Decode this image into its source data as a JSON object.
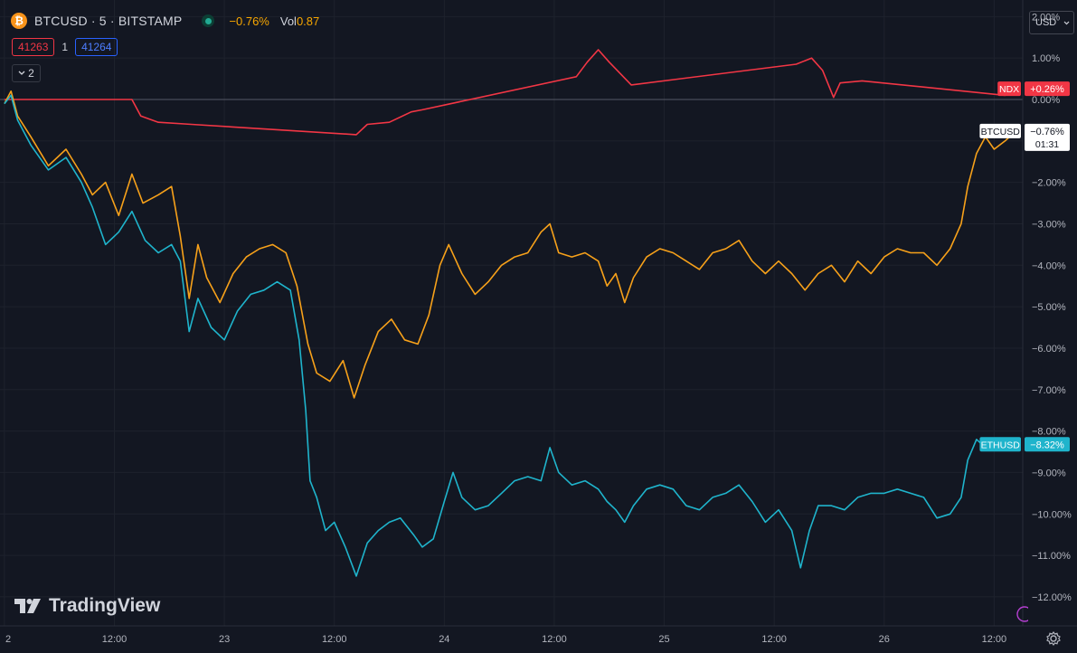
{
  "header": {
    "symbol": "BTCUSD · 5 · BITSTAMP",
    "btc_glyph": "₿",
    "change": "−0.76%",
    "vol_label": "Vol",
    "vol_value": "0.87"
  },
  "order": {
    "sell_price": "41263",
    "quantity": "1",
    "buy_price": "41264"
  },
  "indicators_toggle": {
    "count": "2"
  },
  "currency_selector": {
    "value": "USD"
  },
  "branding": {
    "logo_text": "TradingView"
  },
  "colors": {
    "background": "#131722",
    "btc": "#f7a11a",
    "eth": "#1fb4cc",
    "ndx": "#f23645",
    "grid": "#1e222d",
    "axis_text": "#b2b5be"
  },
  "chart_data": {
    "type": "line",
    "percent_scale": true,
    "ylim": [
      -12.7,
      2.4
    ],
    "y_ticks": [
      "2.00%",
      "1.00%",
      "0.00%",
      "−1.00%",
      "−2.00%",
      "−3.00%",
      "−4.00%",
      "−5.00%",
      "−6.00%",
      "−7.00%",
      "−8.00%",
      "−9.00%",
      "−10.00%",
      "−11.00%",
      "−12.00%"
    ],
    "y_tick_values": [
      2,
      1,
      0,
      -1,
      -2,
      -3,
      -4,
      -5,
      -6,
      -7,
      -8,
      -9,
      -10,
      -11,
      -12
    ],
    "x_ticks": [
      "2",
      "12:00",
      "23",
      "12:00",
      "24",
      "12:00",
      "25",
      "12:00",
      "26",
      "12:00"
    ],
    "x_tick_values": [
      0,
      0.5,
      1,
      1.5,
      2,
      2.5,
      3,
      3.5,
      4,
      4.5
    ],
    "xlim": [
      -0.02,
      4.63
    ],
    "grid": true,
    "series": [
      {
        "name": "NDX",
        "color": "#f23645",
        "last_label": "+0.26%",
        "points": [
          [
            0,
            0
          ],
          [
            0.58,
            0
          ],
          [
            0.62,
            -0.4
          ],
          [
            0.7,
            -0.55
          ],
          [
            0.85,
            -0.6
          ],
          [
            1.6,
            -0.85
          ],
          [
            1.65,
            -0.6
          ],
          [
            1.75,
            -0.55
          ],
          [
            1.85,
            -0.3
          ],
          [
            1.9,
            -0.25
          ],
          [
            2.6,
            0.55
          ],
          [
            2.65,
            0.9
          ],
          [
            2.7,
            1.2
          ],
          [
            2.75,
            0.9
          ],
          [
            2.85,
            0.35
          ],
          [
            3.6,
            0.85
          ],
          [
            3.67,
            1.0
          ],
          [
            3.72,
            0.7
          ],
          [
            3.77,
            0.05
          ],
          [
            3.8,
            0.4
          ],
          [
            3.9,
            0.45
          ],
          [
            4.55,
            0.1
          ],
          [
            4.62,
            0.26
          ]
        ]
      },
      {
        "name": "BTCUSD",
        "color": "#f7a11a",
        "last_label": "−0.76%",
        "countdown": "01:31",
        "points": [
          [
            0,
            -0.1
          ],
          [
            0.03,
            0.2
          ],
          [
            0.06,
            -0.4
          ],
          [
            0.12,
            -0.9
          ],
          [
            0.2,
            -1.6
          ],
          [
            0.28,
            -1.2
          ],
          [
            0.35,
            -1.8
          ],
          [
            0.4,
            -2.3
          ],
          [
            0.46,
            -2.0
          ],
          [
            0.52,
            -2.8
          ],
          [
            0.58,
            -1.8
          ],
          [
            0.63,
            -2.5
          ],
          [
            0.7,
            -2.3
          ],
          [
            0.76,
            -2.1
          ],
          [
            0.8,
            -3.3
          ],
          [
            0.84,
            -4.8
          ],
          [
            0.88,
            -3.5
          ],
          [
            0.92,
            -4.3
          ],
          [
            0.98,
            -4.9
          ],
          [
            1.04,
            -4.2
          ],
          [
            1.1,
            -3.8
          ],
          [
            1.16,
            -3.6
          ],
          [
            1.22,
            -3.5
          ],
          [
            1.28,
            -3.7
          ],
          [
            1.33,
            -4.5
          ],
          [
            1.38,
            -5.9
          ],
          [
            1.42,
            -6.6
          ],
          [
            1.48,
            -6.8
          ],
          [
            1.54,
            -6.3
          ],
          [
            1.59,
            -7.2
          ],
          [
            1.64,
            -6.4
          ],
          [
            1.7,
            -5.6
          ],
          [
            1.76,
            -5.3
          ],
          [
            1.82,
            -5.8
          ],
          [
            1.88,
            -5.9
          ],
          [
            1.93,
            -5.2
          ],
          [
            1.98,
            -4.0
          ],
          [
            2.02,
            -3.5
          ],
          [
            2.08,
            -4.2
          ],
          [
            2.14,
            -4.7
          ],
          [
            2.2,
            -4.4
          ],
          [
            2.26,
            -4.0
          ],
          [
            2.32,
            -3.8
          ],
          [
            2.38,
            -3.7
          ],
          [
            2.44,
            -3.2
          ],
          [
            2.48,
            -3.0
          ],
          [
            2.52,
            -3.7
          ],
          [
            2.58,
            -3.8
          ],
          [
            2.64,
            -3.7
          ],
          [
            2.7,
            -3.9
          ],
          [
            2.74,
            -4.5
          ],
          [
            2.78,
            -4.2
          ],
          [
            2.82,
            -4.9
          ],
          [
            2.86,
            -4.3
          ],
          [
            2.92,
            -3.8
          ],
          [
            2.98,
            -3.6
          ],
          [
            3.04,
            -3.7
          ],
          [
            3.1,
            -3.9
          ],
          [
            3.16,
            -4.1
          ],
          [
            3.22,
            -3.7
          ],
          [
            3.28,
            -3.6
          ],
          [
            3.34,
            -3.4
          ],
          [
            3.4,
            -3.9
          ],
          [
            3.46,
            -4.2
          ],
          [
            3.52,
            -3.9
          ],
          [
            3.58,
            -4.2
          ],
          [
            3.64,
            -4.6
          ],
          [
            3.7,
            -4.2
          ],
          [
            3.76,
            -4.0
          ],
          [
            3.82,
            -4.4
          ],
          [
            3.88,
            -3.9
          ],
          [
            3.94,
            -4.2
          ],
          [
            4.0,
            -3.8
          ],
          [
            4.06,
            -3.6
          ],
          [
            4.12,
            -3.7
          ],
          [
            4.18,
            -3.7
          ],
          [
            4.24,
            -4.0
          ],
          [
            4.3,
            -3.6
          ],
          [
            4.35,
            -3.0
          ],
          [
            4.38,
            -2.1
          ],
          [
            4.42,
            -1.3
          ],
          [
            4.46,
            -0.9
          ],
          [
            4.5,
            -1.2
          ],
          [
            4.55,
            -1.0
          ],
          [
            4.6,
            -0.76
          ]
        ]
      },
      {
        "name": "ETHUSD",
        "color": "#1fb4cc",
        "last_label": "−8.32%",
        "points": [
          [
            0,
            -0.1
          ],
          [
            0.03,
            0.1
          ],
          [
            0.06,
            -0.5
          ],
          [
            0.12,
            -1.1
          ],
          [
            0.2,
            -1.7
          ],
          [
            0.28,
            -1.4
          ],
          [
            0.35,
            -2.0
          ],
          [
            0.4,
            -2.6
          ],
          [
            0.46,
            -3.5
          ],
          [
            0.52,
            -3.2
          ],
          [
            0.58,
            -2.7
          ],
          [
            0.64,
            -3.4
          ],
          [
            0.7,
            -3.7
          ],
          [
            0.76,
            -3.5
          ],
          [
            0.8,
            -3.9
          ],
          [
            0.84,
            -5.6
          ],
          [
            0.88,
            -4.8
          ],
          [
            0.94,
            -5.5
          ],
          [
            1.0,
            -5.8
          ],
          [
            1.06,
            -5.1
          ],
          [
            1.12,
            -4.7
          ],
          [
            1.18,
            -4.6
          ],
          [
            1.24,
            -4.4
          ],
          [
            1.3,
            -4.6
          ],
          [
            1.34,
            -5.8
          ],
          [
            1.37,
            -7.5
          ],
          [
            1.39,
            -9.2
          ],
          [
            1.42,
            -9.6
          ],
          [
            1.46,
            -10.4
          ],
          [
            1.5,
            -10.2
          ],
          [
            1.55,
            -10.8
          ],
          [
            1.6,
            -11.5
          ],
          [
            1.65,
            -10.7
          ],
          [
            1.7,
            -10.4
          ],
          [
            1.75,
            -10.2
          ],
          [
            1.8,
            -10.1
          ],
          [
            1.86,
            -10.5
          ],
          [
            1.9,
            -10.8
          ],
          [
            1.95,
            -10.6
          ],
          [
            2.0,
            -9.7
          ],
          [
            2.04,
            -9.0
          ],
          [
            2.08,
            -9.6
          ],
          [
            2.14,
            -9.9
          ],
          [
            2.2,
            -9.8
          ],
          [
            2.26,
            -9.5
          ],
          [
            2.32,
            -9.2
          ],
          [
            2.38,
            -9.1
          ],
          [
            2.44,
            -9.2
          ],
          [
            2.48,
            -8.4
          ],
          [
            2.52,
            -9.0
          ],
          [
            2.58,
            -9.3
          ],
          [
            2.64,
            -9.2
          ],
          [
            2.7,
            -9.4
          ],
          [
            2.74,
            -9.7
          ],
          [
            2.78,
            -9.9
          ],
          [
            2.82,
            -10.2
          ],
          [
            2.86,
            -9.8
          ],
          [
            2.92,
            -9.4
          ],
          [
            2.98,
            -9.3
          ],
          [
            3.04,
            -9.4
          ],
          [
            3.1,
            -9.8
          ],
          [
            3.16,
            -9.9
          ],
          [
            3.22,
            -9.6
          ],
          [
            3.28,
            -9.5
          ],
          [
            3.34,
            -9.3
          ],
          [
            3.4,
            -9.7
          ],
          [
            3.46,
            -10.2
          ],
          [
            3.52,
            -9.9
          ],
          [
            3.58,
            -10.4
          ],
          [
            3.62,
            -11.3
          ],
          [
            3.66,
            -10.4
          ],
          [
            3.7,
            -9.8
          ],
          [
            3.76,
            -9.8
          ],
          [
            3.82,
            -9.9
          ],
          [
            3.88,
            -9.6
          ],
          [
            3.94,
            -9.5
          ],
          [
            4.0,
            -9.5
          ],
          [
            4.06,
            -9.4
          ],
          [
            4.12,
            -9.5
          ],
          [
            4.18,
            -9.6
          ],
          [
            4.24,
            -10.1
          ],
          [
            4.3,
            -10.0
          ],
          [
            4.35,
            -9.6
          ],
          [
            4.38,
            -8.7
          ],
          [
            4.42,
            -8.2
          ],
          [
            4.46,
            -8.4
          ],
          [
            4.5,
            -8.3
          ],
          [
            4.55,
            -8.4
          ],
          [
            4.6,
            -8.32
          ]
        ]
      }
    ]
  }
}
